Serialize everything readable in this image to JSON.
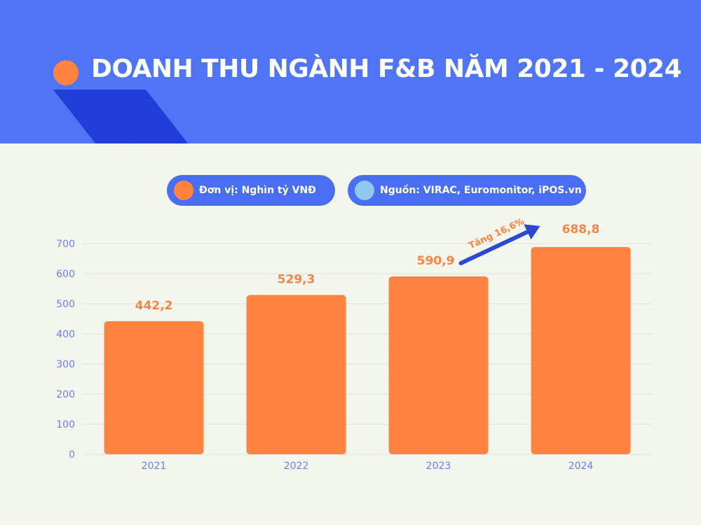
{
  "title": "DOANH THU NGÀNH F&B NĂM 2021 - 2024",
  "unit_label": "Đơn vị: Nghìn tỷ VNĐ",
  "source_label": "Nguồn: VIRAC, Euromonitor, iPOS.vn",
  "growth_label": "Tăng 16,6%",
  "colors": {
    "header": "#4f74f6",
    "accent": "#ff8440",
    "bar": "#ff8440",
    "axis_text": "#6e7ef0",
    "arrow": "#2b47d6",
    "source_dot": "#8ec9f2",
    "background": "#f2f6ec"
  },
  "icons": [
    "orange-dot-icon",
    "light-blue-dot-icon",
    "trend-arrow-icon"
  ],
  "chart_data": {
    "type": "bar",
    "categories": [
      "2021",
      "2022",
      "2023",
      "2024"
    ],
    "values": [
      442.2,
      529.3,
      590.9,
      688.8
    ],
    "value_labels": [
      "442,2",
      "529,3",
      "590,9",
      "688,8"
    ],
    "yticks": [
      "0",
      "100",
      "200",
      "300",
      "400",
      "500",
      "600",
      "700"
    ],
    "ylim": [
      0,
      700
    ],
    "grid": true,
    "title": "DOANH THU NGÀNH F&B NĂM 2021 - 2024",
    "annotation": "Tăng 16,6%"
  }
}
